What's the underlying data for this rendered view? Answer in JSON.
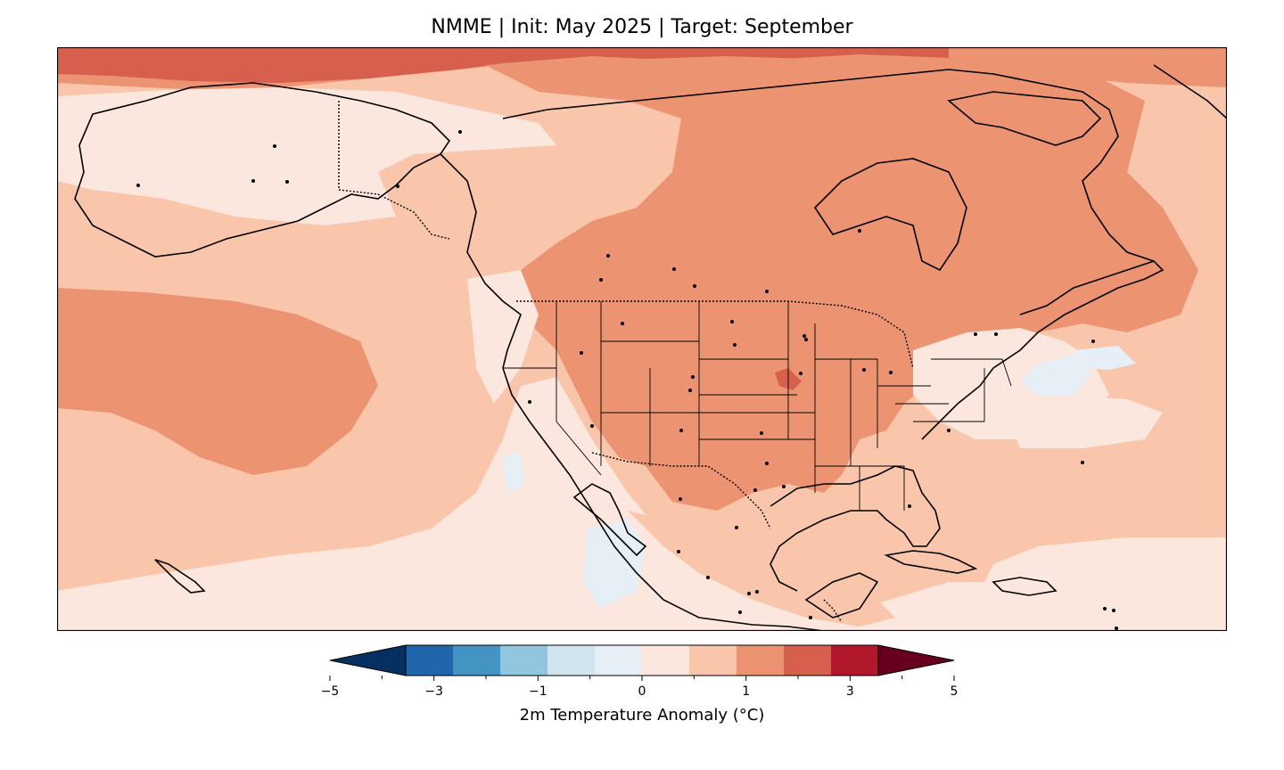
{
  "title": "NMME | Init: May 2025 | Target: September",
  "colorbar": {
    "label": "2m Temperature Anomaly (°C)",
    "ticks": [
      "−5",
      "−3",
      "−1",
      "0",
      "1",
      "3",
      "5"
    ],
    "tick_values": [
      -5,
      -3,
      -1,
      0,
      1,
      3,
      5
    ],
    "levels": [
      -5,
      -4,
      -3,
      -2,
      -1,
      -0.5,
      0,
      0.5,
      1,
      2,
      3,
      4,
      5
    ],
    "colors": [
      "#053061",
      "#2166ac",
      "#4393c3",
      "#92c5de",
      "#d1e5f0",
      "#e6eef6",
      "#fbe7de",
      "#f9c5ab",
      "#ec9372",
      "#d6604d",
      "#b2182b",
      "#67001f"
    ],
    "extend": "both"
  },
  "map": {
    "region": "North America",
    "features": [
      "coastlines",
      "country borders",
      "state boundaries",
      "city markers"
    ],
    "dominant_anomaly_range": [
      0,
      2
    ]
  }
}
